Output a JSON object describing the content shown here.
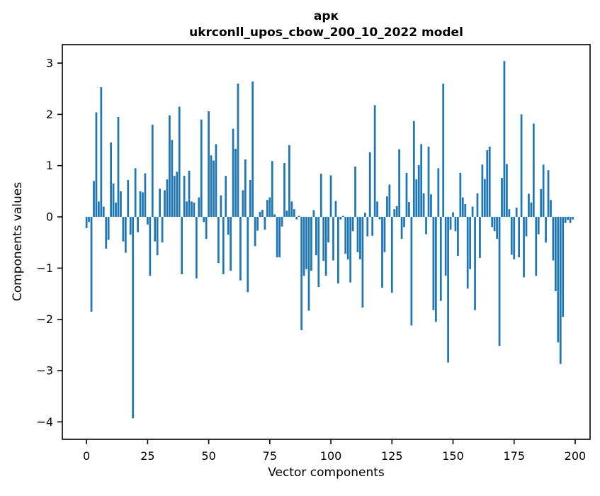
{
  "figure": {
    "background": "#ffffff",
    "text_color": "#000000",
    "spine_color": "#000000"
  },
  "title": {
    "line1": "арк",
    "line2": "ukrconll_upos_cbow_200_10_2022 model"
  },
  "chart_data": {
    "type": "bar",
    "title": "арк",
    "subtitle": "ukrconll_upos_cbow_200_10_2022 model",
    "xlabel": "Vector components",
    "ylabel": "Components values",
    "bar_color": "#1f77b4",
    "grid": false,
    "legend": "none",
    "xlim": [
      -9.9,
      206.1
    ],
    "ylim": [
      -4.34,
      3.36
    ],
    "x_tick_values": [
      0,
      25,
      50,
      75,
      100,
      125,
      150,
      175,
      200
    ],
    "x_tick_labels": [
      "0",
      "25",
      "50",
      "75",
      "100",
      "125",
      "150",
      "175",
      "200"
    ],
    "y_tick_values": [
      3,
      2,
      1,
      0,
      -1,
      -2,
      -3,
      -4
    ],
    "y_tick_labels": [
      "3",
      "2",
      "1",
      "0",
      "−1",
      "−2",
      "−3",
      "−4"
    ],
    "x_start": 0,
    "bar_width_data": 0.8,
    "values": [
      -0.22,
      -0.1,
      -1.85,
      0.7,
      2.04,
      0.3,
      2.53,
      0.2,
      -0.62,
      -0.45,
      1.45,
      0.65,
      0.28,
      1.95,
      0.5,
      -0.48,
      -0.7,
      0.72,
      -0.35,
      -3.93,
      0.95,
      -0.3,
      0.5,
      0.48,
      0.85,
      -0.15,
      -1.15,
      1.8,
      -0.48,
      -0.75,
      0.55,
      -0.5,
      0.52,
      0.73,
      1.98,
      1.5,
      0.8,
      0.88,
      2.15,
      -1.12,
      0.8,
      0.3,
      0.9,
      0.3,
      0.28,
      -1.2,
      0.38,
      1.9,
      -0.1,
      -0.43,
      2.06,
      1.2,
      1.1,
      1.42,
      -0.9,
      0.42,
      -1.12,
      0.8,
      -0.35,
      -1.05,
      1.72,
      1.33,
      2.6,
      -1.24,
      0.52,
      1.12,
      -1.47,
      0.72,
      2.64,
      -0.57,
      -0.27,
      0.1,
      0.14,
      -0.25,
      0.33,
      0.38,
      1.09,
      0.05,
      -0.79,
      -0.79,
      -0.19,
      1.05,
      0.12,
      1.4,
      0.3,
      0.15,
      -0.05,
      0.02,
      -2.21,
      -1.15,
      -1.02,
      -1.83,
      -1.05,
      0.13,
      -0.75,
      -1.37,
      0.84,
      -0.86,
      -1.15,
      -0.5,
      0.81,
      -0.85,
      0.31,
      -1.3,
      -0.05,
      0.02,
      -0.72,
      -0.83,
      -1.28,
      -0.28,
      0.98,
      -0.69,
      -0.83,
      -1.77,
      0.08,
      -0.38,
      1.26,
      -0.37,
      2.18,
      0.3,
      -0.05,
      -1.38,
      -0.69,
      0.4,
      0.63,
      -1.48,
      0.15,
      0.21,
      1.32,
      -0.43,
      -0.2,
      0.86,
      0.29,
      -2.12,
      1.87,
      0.73,
      1.01,
      1.42,
      0.46,
      -0.34,
      1.37,
      0.44,
      -1.82,
      -2.05,
      0.95,
      -1.64,
      2.6,
      -1.15,
      -2.84,
      -0.25,
      0.09,
      -0.28,
      -0.76,
      0.86,
      0.38,
      0.25,
      -1.4,
      -1.02,
      0.2,
      -1.82,
      0.46,
      -0.8,
      1.02,
      0.74,
      1.3,
      1.37,
      -0.2,
      -0.28,
      -0.43,
      -2.52,
      0.76,
      3.04,
      1.03,
      0.15,
      -0.74,
      -0.83,
      0.18,
      -0.79,
      2.0,
      -1.18,
      -0.38,
      0.45,
      0.28,
      1.82,
      -1.15,
      -0.34,
      0.54,
      1.02,
      -0.5,
      0.91,
      0.33,
      -0.85,
      -1.45,
      -2.45,
      -2.87,
      -1.95,
      -0.12,
      -0.06,
      -0.12,
      -0.05
    ]
  }
}
